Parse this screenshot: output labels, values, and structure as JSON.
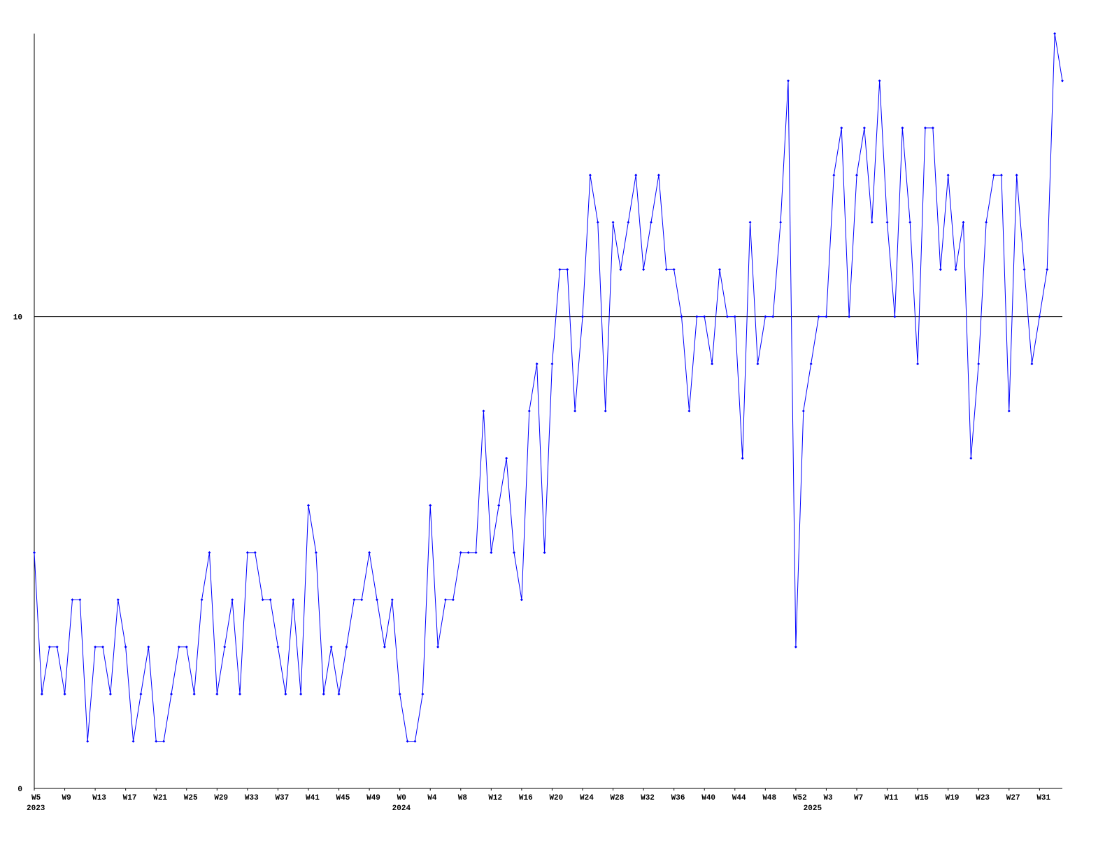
{
  "chart_data": {
    "type": "line",
    "color": "#0000ff",
    "categories": [
      "W5",
      null,
      null,
      null,
      "W9",
      null,
      null,
      null,
      "W13",
      null,
      null,
      null,
      "W17",
      null,
      null,
      null,
      "W21",
      null,
      null,
      null,
      "W25",
      null,
      null,
      null,
      "W29",
      null,
      null,
      null,
      "W33",
      null,
      null,
      null,
      "W37",
      null,
      null,
      null,
      "W41",
      null,
      null,
      null,
      "W45",
      null,
      null,
      null,
      "W49",
      null,
      null,
      null,
      "W0",
      null,
      null,
      null,
      "W4",
      null,
      null,
      null,
      "W8",
      null,
      null,
      null,
      "W12",
      null,
      null,
      null,
      "W16",
      null,
      null,
      null,
      "W20",
      null,
      null,
      null,
      "W24",
      null,
      null,
      null,
      "W28",
      null,
      null,
      null,
      "W32",
      null,
      null,
      null,
      "W36",
      null,
      null,
      null,
      "W40",
      null,
      null,
      null,
      "W44",
      null,
      null,
      null,
      "W48",
      null,
      null,
      null,
      "W52",
      null,
      null,
      null,
      "W3",
      null,
      null,
      null,
      "W7",
      null,
      null,
      null,
      "W11",
      null,
      null,
      null,
      "W15",
      null,
      null,
      null,
      "W19",
      null,
      null,
      null,
      "W23",
      null,
      null,
      null,
      "W27",
      null,
      null,
      null,
      "W31",
      null,
      null,
      null
    ],
    "category_years": [
      "2023",
      null,
      null,
      null,
      null,
      null,
      null,
      null,
      null,
      null,
      null,
      null,
      null,
      null,
      null,
      null,
      null,
      null,
      null,
      null,
      null,
      null,
      null,
      null,
      null,
      null,
      null,
      null,
      null,
      null,
      null,
      null,
      null,
      null,
      null,
      null,
      null,
      null,
      null,
      null,
      null,
      null,
      null,
      null,
      null,
      null,
      null,
      null,
      "2024",
      null,
      null,
      null,
      null,
      null,
      null,
      null,
      null,
      null,
      null,
      null,
      null,
      null,
      null,
      null,
      null,
      null,
      null,
      null,
      null,
      null,
      null,
      null,
      null,
      null,
      null,
      null,
      null,
      null,
      null,
      null,
      null,
      null,
      null,
      null,
      null,
      null,
      null,
      null,
      null,
      null,
      null,
      null,
      null,
      null,
      null,
      null,
      null,
      null,
      null,
      null,
      null,
      null,
      "2025",
      null,
      null,
      null,
      null,
      null,
      null,
      null,
      null,
      null,
      null,
      null,
      null,
      null,
      null,
      null,
      null,
      null,
      null,
      null,
      null,
      null,
      null,
      null,
      null,
      null,
      null,
      null,
      null,
      null,
      null,
      null,
      null,
      null,
      null,
      null
    ],
    "values": [
      5,
      2,
      3,
      3,
      2,
      4,
      4,
      1,
      3,
      3,
      2,
      4,
      3,
      1,
      2,
      3,
      1,
      1,
      2,
      3,
      3,
      2,
      4,
      5,
      2,
      3,
      4,
      2,
      5,
      5,
      4,
      4,
      3,
      2,
      4,
      2,
      6,
      5,
      2,
      3,
      2,
      3,
      4,
      4,
      5,
      4,
      3,
      4,
      2,
      1,
      1,
      2,
      6,
      3,
      4,
      4,
      5,
      5,
      5,
      8,
      5,
      6,
      7,
      5,
      4,
      8,
      9,
      5,
      9,
      11,
      11,
      8,
      10,
      13,
      12,
      8,
      12,
      11,
      12,
      13,
      11,
      12,
      13,
      11,
      11,
      10,
      8,
      10,
      10,
      9,
      11,
      10,
      10,
      7,
      12,
      9,
      10,
      10,
      12,
      15,
      3,
      8,
      9,
      10,
      10,
      13,
      14,
      10,
      13,
      14,
      12,
      15,
      12,
      10,
      14,
      12,
      9,
      14,
      14,
      11,
      13,
      11,
      12,
      7,
      9,
      12,
      13,
      13,
      8,
      13,
      11,
      9,
      10,
      11,
      16,
      15
    ],
    "ylim": [
      0,
      16
    ],
    "yticks": [
      0,
      10
    ],
    "grid": true
  }
}
